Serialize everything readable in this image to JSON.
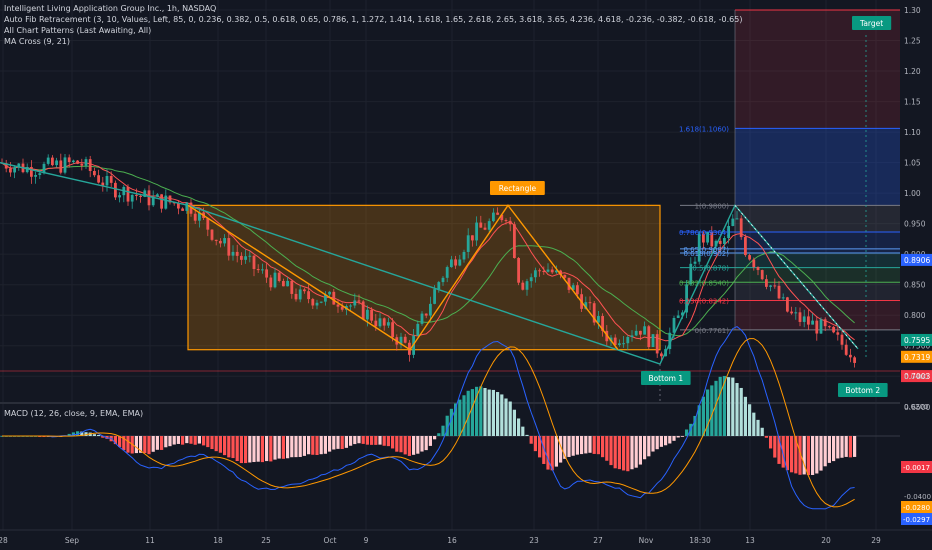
{
  "header": {
    "line1": "Intelligent Living Application Group Inc., 1h, NASDAQ",
    "line2": "Auto Fib Retracement (3, 10, Values, Left, 85, 0, 0.236, 0.382, 0.5, 0.618, 0.65, 0.786, 1, 1.272, 1.414, 1.618, 1.65, 2.618, 2.65, 3.618, 3.65, 4.236, 4.618, -0.236, -0.382, -0.618, -0.65)",
    "line3": "All Chart Patterns (Last Awaiting, All)",
    "line4": "MA Cross (9, 21)",
    "macd": "MACD (12, 26, close, 9, EMA, EMA)"
  },
  "chart_data": [
    {
      "type": "candlestick",
      "ylim": [
        0.64,
        1.32
      ],
      "price_axis_ticks": [
        "1.30",
        "1.25",
        "1.20",
        "1.15",
        "1.10",
        "1.05",
        "1.00",
        "0.950",
        "0.900",
        "0.850",
        "0.800",
        "0.7500",
        "0.6500"
      ],
      "time_axis_ticks": [
        "28",
        "Sep",
        "11",
        "18",
        "25",
        "Oct",
        "9",
        "16",
        "23",
        "27",
        "Nov",
        "18:30",
        "13",
        "20",
        "29"
      ],
      "price_labels": [
        {
          "value": "0.8906",
          "color": "#2962ff"
        },
        {
          "value": "0.7595",
          "color": "#089981"
        },
        {
          "value": "0.7319",
          "color": "#ff9800"
        },
        {
          "value": "0.7003",
          "color": "#f23645"
        }
      ],
      "fib_levels": [
        {
          "label": "1.618(1.1060)",
          "value": 1.106,
          "color": "#2962ff"
        },
        {
          "label": "1(0.9800)",
          "value": 0.98,
          "color": "#787b86"
        },
        {
          "label": "0.786(0.9364)",
          "value": 0.9364,
          "color": "#2962ff"
        },
        {
          "label": "0.65(0.9087)",
          "value": 0.9087,
          "color": "#5b9cf6"
        },
        {
          "label": "0.618(0.902)",
          "value": 0.902,
          "color": "#5b9cf6"
        },
        {
          "label": "0.5(0.878)",
          "value": 0.878,
          "color": "#26a69a"
        },
        {
          "label": "0.382(0.8540)",
          "value": 0.854,
          "color": "#4caf50"
        },
        {
          "label": "0.236(0.8242)",
          "value": 0.8242,
          "color": "#f23645"
        },
        {
          "label": "0(0.7761)",
          "value": 0.7761,
          "color": "#787b86"
        }
      ],
      "pattern_labels": [
        {
          "text": "Rectangle",
          "color": "#ff9800"
        },
        {
          "text": "Bottom 1",
          "color": "#089981"
        },
        {
          "text": "Target",
          "color": "#089981"
        },
        {
          "text": "Bottom 2",
          "color": "#089981"
        }
      ],
      "series": [
        {
          "name": "MA 9",
          "color": "#ff5252"
        },
        {
          "name": "MA 21",
          "color": "#4caf50"
        }
      ],
      "legend": "none"
    },
    {
      "type": "macd",
      "ylim": [
        -0.045,
        0.042
      ],
      "axis_ticks": [
        "0.0400",
        "0.0200",
        "-0.0200",
        "-0.0400"
      ],
      "value_labels": [
        {
          "value": "-0.0017",
          "color": "#f23645"
        },
        {
          "value": "-0.0280",
          "color": "#ff9800"
        },
        {
          "value": "-0.0297",
          "color": "#2962ff"
        }
      ]
    }
  ]
}
